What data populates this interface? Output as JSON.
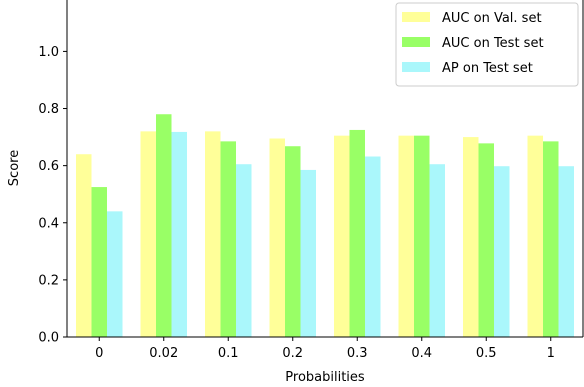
{
  "chart_data": {
    "type": "bar",
    "xlabel": "Probabilities",
    "ylabel": "Score",
    "categories": [
      "0",
      "0.02",
      "0.1",
      "0.2",
      "0.3",
      "0.4",
      "0.5",
      "1"
    ],
    "ylim": [
      0,
      1.18
    ],
    "yticks": [
      "0.0",
      "0.2",
      "0.4",
      "0.6",
      "0.8",
      "1.0"
    ],
    "ytick_values": [
      0,
      0.2,
      0.4,
      0.6,
      0.8,
      1.0
    ],
    "grid": false,
    "legend_placement": "top-right",
    "series": [
      {
        "name": "AUC on Val. set",
        "color": "#ffff99",
        "values": [
          0.64,
          0.72,
          0.72,
          0.695,
          0.705,
          0.705,
          0.7,
          0.705
        ]
      },
      {
        "name": "AUC on Test set",
        "color": "#99ff66",
        "values": [
          0.525,
          0.78,
          0.685,
          0.668,
          0.725,
          0.705,
          0.678,
          0.685
        ]
      },
      {
        "name": "AP on Test set",
        "color": "#aaf7fb",
        "values": [
          0.44,
          0.718,
          0.605,
          0.585,
          0.632,
          0.605,
          0.598,
          0.598
        ]
      }
    ]
  }
}
